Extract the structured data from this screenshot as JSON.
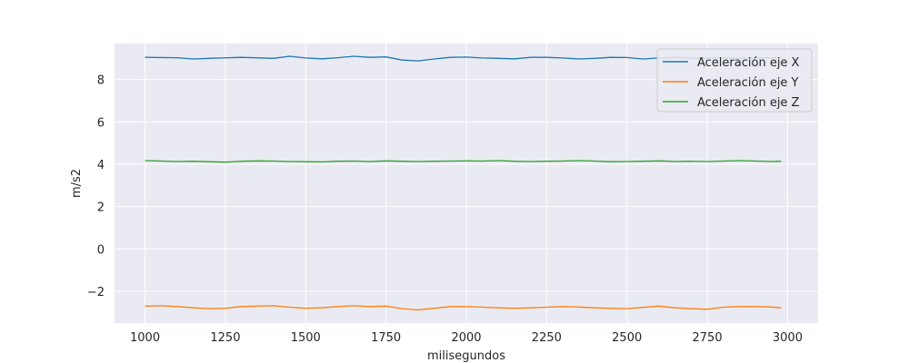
{
  "chart_data": {
    "type": "line",
    "title": "",
    "xlabel": "milisegundos",
    "ylabel": "m/s2",
    "xlim": [
      905,
      3095
    ],
    "ylim": [
      -3.5,
      9.7
    ],
    "xticks": [
      1000,
      1250,
      1500,
      1750,
      2000,
      2250,
      2500,
      2750,
      3000
    ],
    "xtick_labels": [
      "1000",
      "1250",
      "1500",
      "1750",
      "2000",
      "2250",
      "2500",
      "2750",
      "3000"
    ],
    "yticks": [
      -2,
      0,
      2,
      4,
      6,
      8
    ],
    "ytick_labels": [
      "−2",
      "0",
      "2",
      "4",
      "6",
      "8"
    ],
    "grid": true,
    "legend_position": "top-right",
    "series": [
      {
        "name": "Aceleración eje X",
        "color": "#1f77b4",
        "x": [
          1000,
          1100,
          1150,
          1200,
          1300,
          1400,
          1450,
          1500,
          1550,
          1600,
          1650,
          1700,
          1750,
          1800,
          1850,
          1900,
          1950,
          2000,
          2050,
          2100,
          2150,
          2200,
          2250,
          2300,
          2350,
          2400,
          2450,
          2500,
          2550,
          2600,
          2650,
          2700,
          2750,
          2800,
          2850,
          2900,
          2950,
          2980
        ],
        "y": [
          9.05,
          9.03,
          8.97,
          9.0,
          9.05,
          9.0,
          9.1,
          9.02,
          8.98,
          9.03,
          9.1,
          9.05,
          9.07,
          8.92,
          8.88,
          8.97,
          9.05,
          9.06,
          9.02,
          9.0,
          8.98,
          9.05,
          9.05,
          9.02,
          8.97,
          9.0,
          9.05,
          9.04,
          8.97,
          9.02,
          9.05,
          9.0,
          9.02,
          9.03,
          9.0,
          9.02,
          9.03,
          9.04
        ]
      },
      {
        "name": "Aceleración eje Y",
        "color": "#ff7f0e",
        "x": [
          1000,
          1050,
          1100,
          1150,
          1200,
          1250,
          1300,
          1350,
          1400,
          1450,
          1500,
          1550,
          1600,
          1650,
          1700,
          1750,
          1800,
          1850,
          1900,
          1950,
          2000,
          2050,
          2100,
          2150,
          2200,
          2250,
          2300,
          2350,
          2400,
          2450,
          2500,
          2550,
          2600,
          2650,
          2700,
          2750,
          2800,
          2850,
          2900,
          2950,
          2980
        ],
        "y": [
          -2.7,
          -2.68,
          -2.72,
          -2.78,
          -2.82,
          -2.8,
          -2.72,
          -2.7,
          -2.68,
          -2.75,
          -2.8,
          -2.78,
          -2.72,
          -2.68,
          -2.72,
          -2.7,
          -2.82,
          -2.88,
          -2.8,
          -2.72,
          -2.72,
          -2.75,
          -2.78,
          -2.8,
          -2.78,
          -2.75,
          -2.72,
          -2.74,
          -2.78,
          -2.8,
          -2.82,
          -2.76,
          -2.7,
          -2.78,
          -2.82,
          -2.85,
          -2.75,
          -2.72,
          -2.72,
          -2.74,
          -2.78
        ]
      },
      {
        "name": "Aceleración eje Z",
        "color": "#2ca02c",
        "x": [
          1000,
          1050,
          1100,
          1150,
          1200,
          1250,
          1300,
          1350,
          1400,
          1450,
          1500,
          1550,
          1600,
          1650,
          1700,
          1750,
          1800,
          1850,
          1900,
          1950,
          2000,
          2050,
          2100,
          2150,
          2200,
          2250,
          2300,
          2350,
          2400,
          2450,
          2500,
          2550,
          2600,
          2650,
          2700,
          2750,
          2800,
          2850,
          2900,
          2950,
          2980
        ],
        "y": [
          4.17,
          4.15,
          4.13,
          4.14,
          4.12,
          4.1,
          4.14,
          4.16,
          4.15,
          4.13,
          4.12,
          4.11,
          4.14,
          4.15,
          4.13,
          4.16,
          4.14,
          4.13,
          4.14,
          4.15,
          4.16,
          4.15,
          4.17,
          4.14,
          4.13,
          4.14,
          4.15,
          4.17,
          4.15,
          4.12,
          4.13,
          4.14,
          4.16,
          4.13,
          4.14,
          4.13,
          4.15,
          4.17,
          4.15,
          4.13,
          4.14
        ]
      }
    ]
  }
}
